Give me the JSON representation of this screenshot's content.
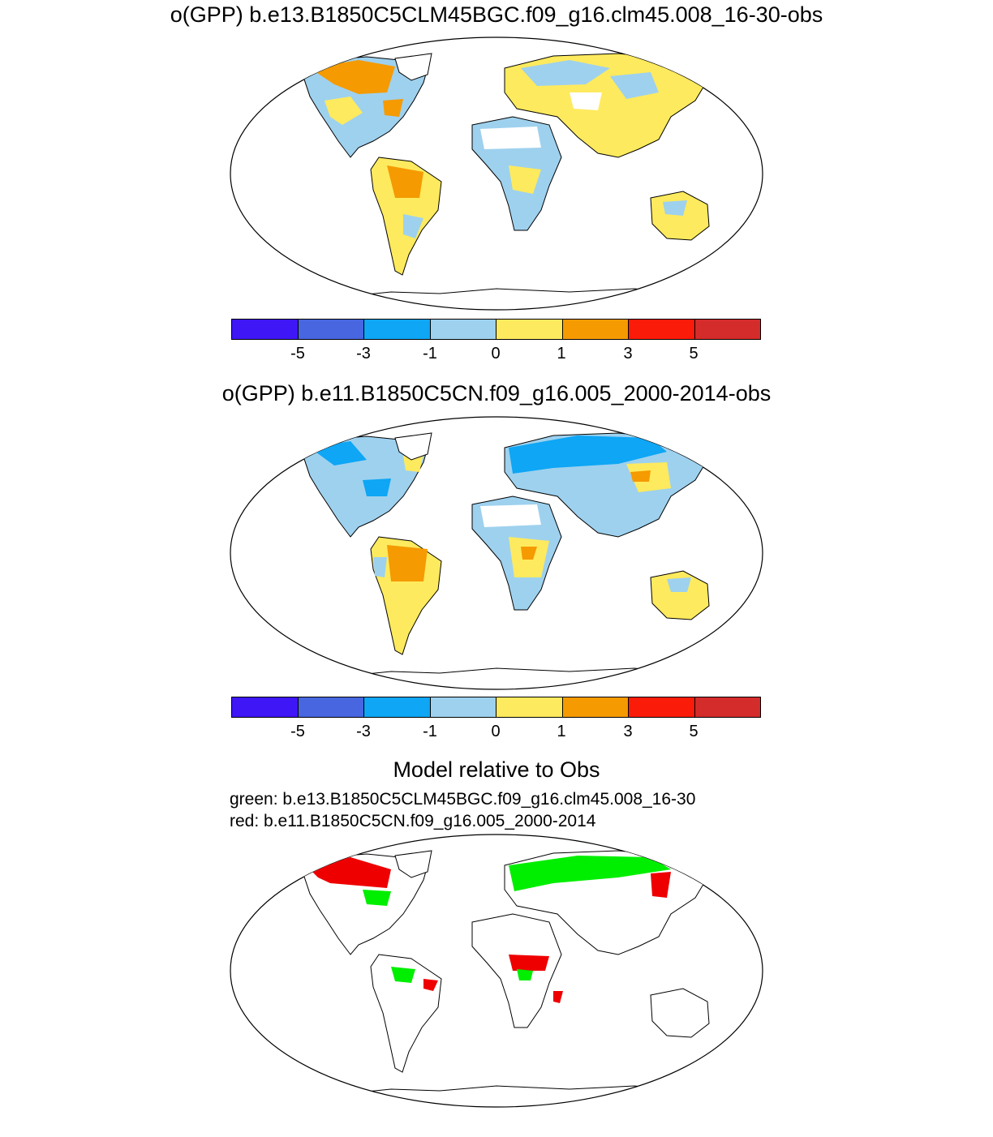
{
  "panels": [
    {
      "title": "o(GPP) b.e13.B1850C5CLM45BGC.f09_g16.clm45.008_16-30-obs"
    },
    {
      "title": "o(GPP) b.e11.B1850C5CN.f09_g16.005_2000-2014-obs"
    }
  ],
  "colorbar": {
    "colors": [
      "#3f16f5",
      "#4766e0",
      "#0ea6f5",
      "#9ed1ee",
      "#feea5e",
      "#f59a00",
      "#fb1b09",
      "#d42b2b"
    ],
    "ticks": [
      "-5",
      "-3",
      "-1",
      "0",
      "1",
      "3",
      "5"
    ]
  },
  "comparison": {
    "title": "Model relative to Obs",
    "green_label": "green: b.e13.B1850C5CLM45BGC.f09_g16.clm45.008_16-30",
    "red_label": "red: b.e11.B1850C5CN.f09_g16.005_2000-2014",
    "green_color": "#00ee00",
    "red_color": "#ee0000"
  }
}
